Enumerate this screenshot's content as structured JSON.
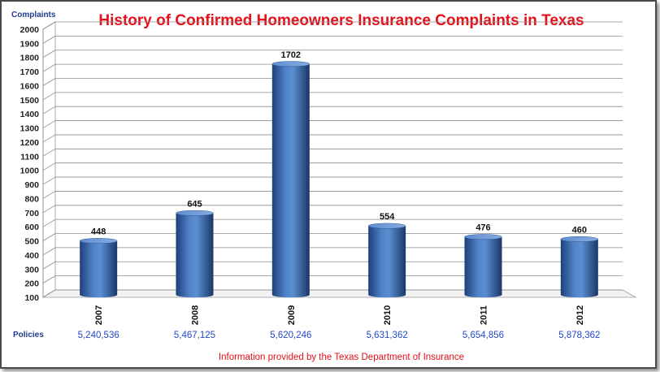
{
  "chart_data": {
    "type": "bar",
    "title": "History of Confirmed Homeowners Insurance Complaints in Texas",
    "ylabel": "Complaints",
    "xlabel": "",
    "categories": [
      "2007",
      "2008",
      "2009",
      "2010",
      "2011",
      "2012"
    ],
    "values": [
      448,
      645,
      1702,
      554,
      476,
      460
    ],
    "ylim": [
      100,
      2000
    ],
    "ytick_step": 100,
    "grid": true,
    "legend": "none",
    "bar_color": "#3f6fb5",
    "policies_label": "Policies",
    "policies": [
      "5,240,536",
      "5,467,125",
      "5,620,246",
      "5,631,362",
      "5,654,856",
      "5,878,362"
    ],
    "source": "Information provided by the Texas Department of Insurance"
  }
}
